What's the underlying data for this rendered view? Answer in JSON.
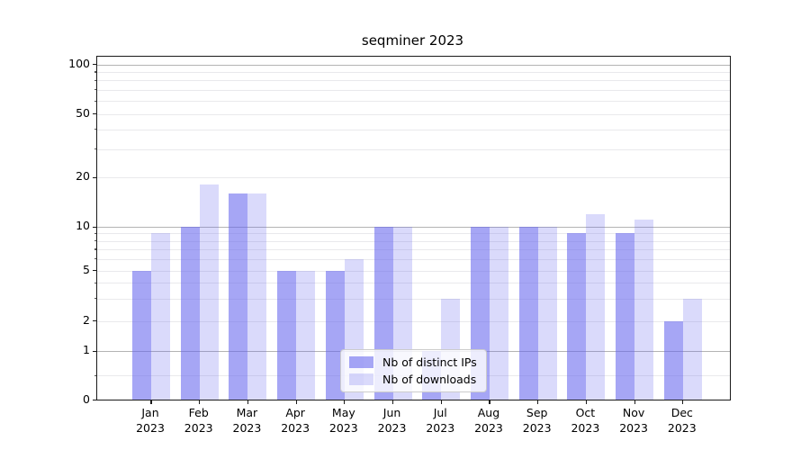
{
  "title": "seqminer 2023",
  "chart_data": {
    "type": "bar",
    "title": "seqminer 2023",
    "categories": [
      "Jan",
      "Feb",
      "Mar",
      "Apr",
      "May",
      "Jun",
      "Jul",
      "Aug",
      "Sep",
      "Oct",
      "Nov",
      "Dec"
    ],
    "category_year": "2023",
    "series": [
      {
        "name": "Nb of distinct IPs",
        "color": "#6666ee",
        "alpha": 0.58,
        "values": [
          5,
          10,
          16,
          5,
          5,
          10,
          1,
          10,
          10,
          9,
          9,
          2
        ]
      },
      {
        "name": "Nb of downloads",
        "color": "#6666ee",
        "alpha": 0.24,
        "values": [
          9,
          18,
          16,
          5,
          6,
          10,
          3,
          10,
          10,
          12,
          11,
          3
        ]
      }
    ],
    "yscale": "symlog",
    "ylim": [
      0,
      120
    ],
    "ytick_labels": [
      "0",
      "1",
      "2",
      "5",
      "10",
      "20",
      "50",
      "100"
    ],
    "yticks": [
      0,
      1,
      2,
      5,
      10,
      20,
      50,
      100
    ],
    "major_gridline_values": [
      1,
      10,
      100
    ],
    "minor_gridline_values": [
      0.5,
      2,
      3,
      4,
      5,
      6,
      7,
      8,
      9,
      20,
      30,
      40,
      50,
      60,
      70,
      80,
      90
    ],
    "grid": true,
    "legend_position": "lower center",
    "colors": {
      "bar_base": "#6666ee",
      "bar_ips_rendered": "#a5a5f5",
      "bar_downloads_rendered": "#dcdcf8",
      "major_grid": "#b3b3b3",
      "minor_grid": "#e9e9ec",
      "spine": "#1a1a1a",
      "background": "#ffffff"
    }
  }
}
